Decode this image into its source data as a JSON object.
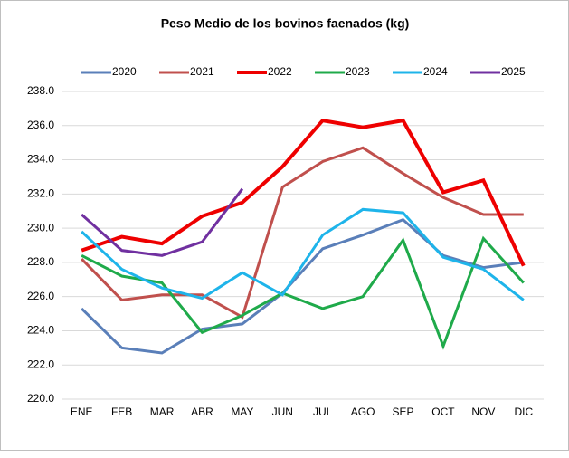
{
  "chart_data": {
    "type": "line",
    "title": "Peso Medio de los bovinos faenados (kg)",
    "categories": [
      "ENE",
      "FEB",
      "MAR",
      "ABR",
      "MAY",
      "JUN",
      "JUL",
      "AGO",
      "SEP",
      "OCT",
      "NOV",
      "DIC"
    ],
    "series": [
      {
        "name": "2020",
        "color": "#5a7fb9",
        "values": [
          225.3,
          223.0,
          222.7,
          224.1,
          224.4,
          226.2,
          228.8,
          229.6,
          230.5,
          228.4,
          227.7,
          228.0
        ]
      },
      {
        "name": "2021",
        "color": "#c0504d",
        "values": [
          228.2,
          225.8,
          226.1,
          226.1,
          224.8,
          232.4,
          233.9,
          234.7,
          233.2,
          231.8,
          230.8,
          230.8
        ]
      },
      {
        "name": "2022",
        "color": "#ee0000",
        "values": [
          228.7,
          229.5,
          229.1,
          230.7,
          231.5,
          233.6,
          236.3,
          235.9,
          236.3,
          232.1,
          232.8,
          227.8
        ]
      },
      {
        "name": "2023",
        "color": "#1faa4a",
        "values": [
          228.4,
          227.2,
          226.8,
          223.9,
          224.9,
          226.2,
          225.3,
          226.0,
          229.3,
          223.1,
          229.4,
          226.8
        ]
      },
      {
        "name": "2024",
        "color": "#1eb4ea",
        "values": [
          229.8,
          227.6,
          226.5,
          225.9,
          227.4,
          226.1,
          229.6,
          231.1,
          230.9,
          228.3,
          227.6,
          225.8
        ]
      },
      {
        "name": "2025",
        "color": "#7030a0",
        "values": [
          230.8,
          228.7,
          228.4,
          229.2,
          232.3,
          null,
          null,
          null,
          null,
          null,
          null,
          null
        ]
      }
    ],
    "ylim": [
      220,
      238
    ],
    "yticks": [
      {
        "value": 220,
        "label": "220.0"
      },
      {
        "value": 222,
        "label": "222.0"
      },
      {
        "value": 224,
        "label": "224.0"
      },
      {
        "value": 226,
        "label": "226.0"
      },
      {
        "value": 228,
        "label": "228.0"
      },
      {
        "value": 230,
        "label": "230.0"
      },
      {
        "value": 232,
        "label": "232.0"
      },
      {
        "value": 234,
        "label": "234.0"
      },
      {
        "value": 236,
        "label": "236.0"
      },
      {
        "value": 238,
        "label": "238.0"
      }
    ],
    "grid": true,
    "legend": "top"
  }
}
